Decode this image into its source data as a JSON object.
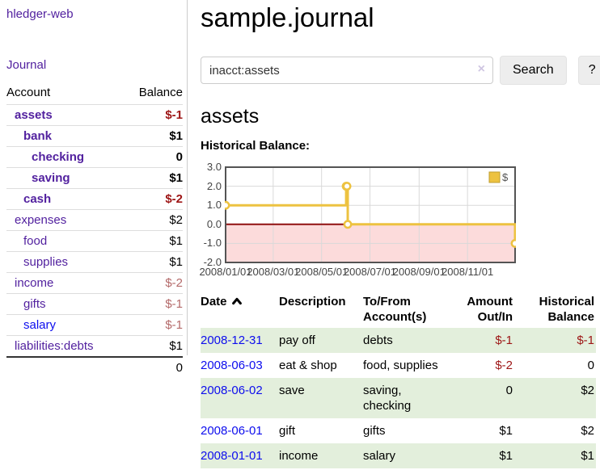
{
  "app": {
    "brand": "hledger-web"
  },
  "colors": {
    "link_purple": "#52219f",
    "link_blue": "#0d0dee",
    "negative_strong": "#9d1515",
    "negative_faded": "#b46a6a",
    "row_stripe_green": "#e3efdc",
    "chart_line": "#edc240",
    "chart_negative_fill": "#fcdbdb",
    "chart_zero_line": "#8f1010",
    "chart_border": "#545454",
    "chart_grid": "#d9d9d9"
  },
  "sidebar": {
    "journal_link": "Journal",
    "accounts_table": {
      "headers": {
        "account": "Account",
        "balance": "Balance"
      },
      "rows": [
        {
          "name": "assets",
          "balance": "$-1",
          "depth": 1,
          "bold": true,
          "balance_style": "neg-strong",
          "link_color": "purple"
        },
        {
          "name": "bank",
          "balance": "$1",
          "depth": 2,
          "bold": true,
          "balance_style": "pos",
          "link_color": "purple"
        },
        {
          "name": "checking",
          "balance": "0",
          "depth": 3,
          "bold": true,
          "balance_style": "pos",
          "link_color": "purple"
        },
        {
          "name": "saving",
          "balance": "$1",
          "depth": 3,
          "bold": true,
          "balance_style": "pos",
          "link_color": "purple"
        },
        {
          "name": "cash",
          "balance": "$-2",
          "depth": 2,
          "bold": true,
          "balance_style": "neg-strong",
          "link_color": "purple"
        },
        {
          "name": "expenses",
          "balance": "$2",
          "depth": 1,
          "bold": false,
          "balance_style": "pos",
          "link_color": "purple"
        },
        {
          "name": "food",
          "balance": "$1",
          "depth": 2,
          "bold": false,
          "balance_style": "pos",
          "link_color": "purple"
        },
        {
          "name": "supplies",
          "balance": "$1",
          "depth": 2,
          "bold": false,
          "balance_style": "pos",
          "link_color": "purple"
        },
        {
          "name": "income",
          "balance": "$-2",
          "depth": 1,
          "bold": false,
          "balance_style": "neg-faded",
          "link_color": "purple"
        },
        {
          "name": "gifts",
          "balance": "$-1",
          "depth": 2,
          "bold": false,
          "balance_style": "neg-faded",
          "link_color": "purple"
        },
        {
          "name": "salary",
          "balance": "$-1",
          "depth": 2,
          "bold": false,
          "balance_style": "neg-faded",
          "link_color": "blue"
        },
        {
          "name": "liabilities:debts",
          "balance": "$1",
          "depth": 1,
          "bold": false,
          "balance_style": "pos",
          "link_color": "purple"
        }
      ],
      "total": "0"
    }
  },
  "header": {
    "title": "sample.journal"
  },
  "search": {
    "value": "inacct:assets",
    "clear_icon": "×",
    "button_label": "Search",
    "help_label": "?"
  },
  "account_view": {
    "heading": "assets",
    "chart_label": "Historical Balance:"
  },
  "chart_data": {
    "type": "line",
    "step": true,
    "title": "Historical Balance",
    "xlabel": "",
    "ylabel": "",
    "xlim": [
      "2008-01-01",
      "2008-12-31"
    ],
    "ylim": [
      -2,
      3
    ],
    "x_ticks": [
      "2008/01/01",
      "2008/03/01",
      "2008/05/01",
      "2008/07/01",
      "2008/09/01",
      "2008/11/01"
    ],
    "y_ticks": [
      "3.0",
      "2.0",
      "1.0",
      "0.0",
      "-1.0",
      "-2.0"
    ],
    "grid": true,
    "legend": {
      "label": "$",
      "position": "top-right",
      "swatch_color": "#edc240"
    },
    "series": [
      {
        "name": "$",
        "color": "#edc240",
        "points": [
          [
            "2008-01-01",
            1
          ],
          [
            "2008-06-01",
            2
          ],
          [
            "2008-06-02",
            2
          ],
          [
            "2008-06-03",
            0
          ],
          [
            "2008-12-31",
            -1
          ]
        ]
      }
    ]
  },
  "register": {
    "columns": [
      {
        "line1": "Date",
        "line2": "",
        "sorted": true,
        "align": "left"
      },
      {
        "line1": "Description",
        "line2": "",
        "sorted": false,
        "align": "left"
      },
      {
        "line1": "To/From",
        "line2": "Account(s)",
        "sorted": false,
        "align": "left"
      },
      {
        "line1": "Amount",
        "line2": "Out/In",
        "sorted": false,
        "align": "right"
      },
      {
        "line1": "Historical",
        "line2": "Balance",
        "sorted": false,
        "align": "right"
      }
    ],
    "rows": [
      {
        "date": "2008-12-31",
        "description": "pay off",
        "accounts": "debts",
        "amount": "$-1",
        "amount_negative": true,
        "balance": "$-1",
        "balance_negative": true
      },
      {
        "date": "2008-06-03",
        "description": "eat & shop",
        "accounts": "food, supplies",
        "amount": "$-2",
        "amount_negative": true,
        "balance": "0",
        "balance_negative": false
      },
      {
        "date": "2008-06-02",
        "description": "save",
        "accounts": "saving, checking",
        "amount": "0",
        "amount_negative": false,
        "balance": "$2",
        "balance_negative": false
      },
      {
        "date": "2008-06-01",
        "description": "gift",
        "accounts": "gifts",
        "amount": "$1",
        "amount_negative": false,
        "balance": "$2",
        "balance_negative": false
      },
      {
        "date": "2008-01-01",
        "description": "income",
        "accounts": "salary",
        "amount": "$1",
        "amount_negative": false,
        "balance": "$1",
        "balance_negative": false
      }
    ]
  }
}
